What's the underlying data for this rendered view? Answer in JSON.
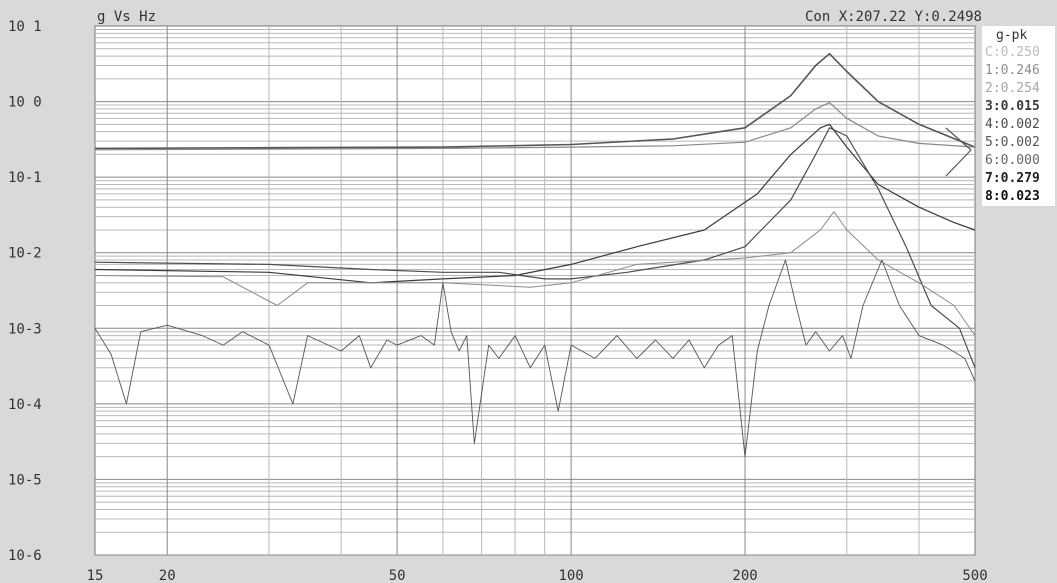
{
  "header": {
    "title": "g Vs Hz",
    "cursor_readout": "Con X:207.22 Y:0.2498"
  },
  "legend": {
    "title": "g-pk",
    "items": [
      {
        "label": "C:0.250",
        "color": "#bdbdbd",
        "bold": false
      },
      {
        "label": "1:0.246",
        "color": "#8f8f8f",
        "bold": false
      },
      {
        "label": "2:0.254",
        "color": "#a7a7a7",
        "bold": false
      },
      {
        "label": "3:0.015",
        "color": "#3a3a3a",
        "bold": true
      },
      {
        "label": "4:0.002",
        "color": "#4a4a4a",
        "bold": false
      },
      {
        "label": "5:0.002",
        "color": "#555555",
        "bold": false
      },
      {
        "label": "6:0.000",
        "color": "#666666",
        "bold": false
      },
      {
        "label": "7:0.279",
        "color": "#222222",
        "bold": true
      },
      {
        "label": "8:0.023",
        "color": "#111111",
        "bold": true
      }
    ]
  },
  "chart_data": {
    "type": "line",
    "title": "g Vs Hz",
    "xscale": "log",
    "yscale": "log",
    "xlim": [
      15,
      500
    ],
    "ylim": [
      1e-06,
      10
    ],
    "grid": true,
    "legend_position": "right",
    "x_ticks": [
      {
        "value": 15,
        "label": "15"
      },
      {
        "value": 20,
        "label": "20"
      },
      {
        "value": 50,
        "label": "50"
      },
      {
        "value": 100,
        "label": "100"
      },
      {
        "value": 200,
        "label": "200"
      },
      {
        "value": 500,
        "label": "500"
      }
    ],
    "y_ticks": [
      {
        "value": 10,
        "label": "10 1"
      },
      {
        "value": 1,
        "label": "10 0"
      },
      {
        "value": 0.1,
        "label": "10-1"
      },
      {
        "value": 0.01,
        "label": "10-2"
      },
      {
        "value": 0.001,
        "label": "10-3"
      },
      {
        "value": 0.0001,
        "label": "10-4"
      },
      {
        "value": 1e-05,
        "label": "10-5"
      },
      {
        "value": 1e-06,
        "label": "10-6"
      }
    ],
    "series": [
      {
        "color": "#555555",
        "width": 1.6,
        "points": [
          [
            15,
            0.24
          ],
          [
            30,
            0.245
          ],
          [
            60,
            0.25
          ],
          [
            100,
            0.27
          ],
          [
            150,
            0.32
          ],
          [
            200,
            0.45
          ],
          [
            240,
            1.2
          ],
          [
            265,
            3.0
          ],
          [
            280,
            4.3
          ],
          [
            300,
            2.5
          ],
          [
            340,
            1.0
          ],
          [
            400,
            0.5
          ],
          [
            500,
            0.25
          ]
        ]
      },
      {
        "color": "#888888",
        "width": 1.2,
        "points": [
          [
            15,
            0.23
          ],
          [
            30,
            0.235
          ],
          [
            60,
            0.24
          ],
          [
            100,
            0.25
          ],
          [
            150,
            0.26
          ],
          [
            200,
            0.29
          ],
          [
            240,
            0.45
          ],
          [
            265,
            0.8
          ],
          [
            280,
            0.97
          ],
          [
            300,
            0.6
          ],
          [
            340,
            0.35
          ],
          [
            400,
            0.28
          ],
          [
            500,
            0.25
          ]
        ]
      },
      {
        "color": "#3a3a3a",
        "width": 1.2,
        "points": [
          [
            15,
            0.006
          ],
          [
            30,
            0.0055
          ],
          [
            45,
            0.004
          ],
          [
            60,
            0.0045
          ],
          [
            80,
            0.005
          ],
          [
            100,
            0.007
          ],
          [
            130,
            0.012
          ],
          [
            170,
            0.02
          ],
          [
            210,
            0.06
          ],
          [
            240,
            0.2
          ],
          [
            270,
            0.45
          ],
          [
            280,
            0.5
          ],
          [
            300,
            0.25
          ],
          [
            340,
            0.08
          ],
          [
            400,
            0.04
          ],
          [
            460,
            0.025
          ],
          [
            500,
            0.02
          ]
        ]
      },
      {
        "color": "#4d4d4d",
        "width": 1.2,
        "points": [
          [
            15,
            0.0075
          ],
          [
            30,
            0.007
          ],
          [
            45,
            0.006
          ],
          [
            60,
            0.0055
          ],
          [
            75,
            0.0055
          ],
          [
            90,
            0.0045
          ],
          [
            100,
            0.0045
          ],
          [
            125,
            0.0055
          ],
          [
            170,
            0.008
          ],
          [
            200,
            0.012
          ],
          [
            240,
            0.05
          ],
          [
            265,
            0.2
          ],
          [
            280,
            0.45
          ],
          [
            300,
            0.35
          ],
          [
            340,
            0.07
          ],
          [
            380,
            0.012
          ],
          [
            420,
            0.002
          ],
          [
            470,
            0.001
          ],
          [
            500,
            0.0003
          ]
        ]
      },
      {
        "color": "#8a8a8a",
        "width": 1.0,
        "points": [
          [
            15,
            0.005
          ],
          [
            25,
            0.0048
          ],
          [
            31,
            0.002
          ],
          [
            35,
            0.004
          ],
          [
            60,
            0.004
          ],
          [
            85,
            0.0035
          ],
          [
            100,
            0.004
          ],
          [
            130,
            0.007
          ],
          [
            200,
            0.0085
          ],
          [
            240,
            0.01
          ],
          [
            270,
            0.02
          ],
          [
            285,
            0.035
          ],
          [
            300,
            0.02
          ],
          [
            340,
            0.008
          ],
          [
            400,
            0.004
          ],
          [
            460,
            0.002
          ],
          [
            500,
            0.0008
          ]
        ]
      },
      {
        "color": "#555555",
        "width": 0.9,
        "points": [
          [
            15,
            0.001
          ],
          [
            16,
            0.00045
          ],
          [
            17,
            0.0001
          ],
          [
            18,
            0.0009
          ],
          [
            20,
            0.0011
          ],
          [
            23,
            0.0008
          ],
          [
            25,
            0.0006
          ],
          [
            27,
            0.0009
          ],
          [
            30,
            0.0006
          ],
          [
            33,
            0.0001
          ],
          [
            35,
            0.0008
          ],
          [
            38,
            0.0006
          ],
          [
            40,
            0.0005
          ],
          [
            43,
            0.0008
          ],
          [
            45,
            0.0003
          ],
          [
            48,
            0.0007
          ],
          [
            50,
            0.0006
          ],
          [
            55,
            0.0008
          ],
          [
            58,
            0.0006
          ],
          [
            60,
            0.004
          ],
          [
            62,
            0.0009
          ],
          [
            64,
            0.0005
          ],
          [
            66,
            0.0008
          ],
          [
            68,
            3e-05
          ],
          [
            72,
            0.0006
          ],
          [
            75,
            0.0004
          ],
          [
            80,
            0.0008
          ],
          [
            85,
            0.0003
          ],
          [
            90,
            0.0006
          ],
          [
            95,
            8e-05
          ],
          [
            100,
            0.0006
          ],
          [
            110,
            0.0004
          ],
          [
            120,
            0.0008
          ],
          [
            130,
            0.0004
          ],
          [
            140,
            0.0007
          ],
          [
            150,
            0.0004
          ],
          [
            160,
            0.0007
          ],
          [
            170,
            0.0003
          ],
          [
            180,
            0.0006
          ],
          [
            190,
            0.0008
          ],
          [
            200,
            2e-05
          ],
          [
            210,
            0.0005
          ],
          [
            220,
            0.002
          ],
          [
            235,
            0.008
          ],
          [
            245,
            0.002
          ],
          [
            255,
            0.0006
          ],
          [
            265,
            0.0009
          ],
          [
            280,
            0.0005
          ],
          [
            295,
            0.0008
          ],
          [
            305,
            0.0004
          ],
          [
            320,
            0.002
          ],
          [
            345,
            0.008
          ],
          [
            370,
            0.002
          ],
          [
            400,
            0.0008
          ],
          [
            440,
            0.0006
          ],
          [
            480,
            0.0004
          ],
          [
            500,
            0.0002
          ]
        ]
      }
    ]
  }
}
